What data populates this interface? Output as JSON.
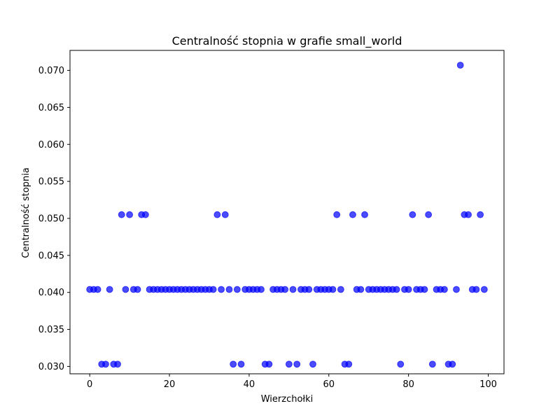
{
  "chart_data": {
    "type": "scatter",
    "title": "Centralność stopnia w grafie small_world",
    "xlabel": "Wierzchołki",
    "ylabel": "Centralność stopnia",
    "xlim": [
      -4.95,
      103.95
    ],
    "ylim": [
      0.029,
      0.0727
    ],
    "xticks": [
      0,
      20,
      40,
      60,
      80,
      100
    ],
    "xtick_labels": [
      "0",
      "20",
      "40",
      "60",
      "80",
      "100"
    ],
    "yticks": [
      0.03,
      0.035,
      0.04,
      0.045,
      0.05,
      0.055,
      0.06,
      0.065,
      0.07
    ],
    "ytick_labels": [
      "0.030",
      "0.035",
      "0.040",
      "0.045",
      "0.050",
      "0.055",
      "0.060",
      "0.065",
      "0.070"
    ],
    "grid": false,
    "marker_color": "#0000ff",
    "x": [
      0,
      1,
      2,
      3,
      4,
      5,
      6,
      7,
      8,
      9,
      10,
      11,
      12,
      13,
      14,
      15,
      16,
      17,
      18,
      19,
      20,
      21,
      22,
      23,
      24,
      25,
      26,
      27,
      28,
      29,
      30,
      31,
      32,
      33,
      34,
      35,
      36,
      37,
      38,
      39,
      40,
      41,
      42,
      43,
      44,
      45,
      46,
      47,
      48,
      49,
      50,
      51,
      52,
      53,
      54,
      55,
      56,
      57,
      58,
      59,
      60,
      61,
      62,
      63,
      64,
      65,
      66,
      67,
      68,
      69,
      70,
      71,
      72,
      73,
      74,
      75,
      76,
      77,
      78,
      79,
      80,
      81,
      82,
      83,
      84,
      85,
      86,
      87,
      88,
      89,
      90,
      91,
      92,
      93,
      94,
      95,
      96,
      97,
      98,
      99
    ],
    "y": [
      0.0404,
      0.0404,
      0.0404,
      0.0303,
      0.0303,
      0.0404,
      0.0303,
      0.0303,
      0.0505,
      0.0404,
      0.0505,
      0.0404,
      0.0404,
      0.0505,
      0.0505,
      0.0404,
      0.0404,
      0.0404,
      0.0404,
      0.0404,
      0.0404,
      0.0404,
      0.0404,
      0.0404,
      0.0404,
      0.0404,
      0.0404,
      0.0404,
      0.0404,
      0.0404,
      0.0404,
      0.0404,
      0.0505,
      0.0404,
      0.0505,
      0.0404,
      0.0303,
      0.0404,
      0.0303,
      0.0404,
      0.0404,
      0.0404,
      0.0404,
      0.0404,
      0.0303,
      0.0303,
      0.0404,
      0.0404,
      0.0404,
      0.0404,
      0.0303,
      0.0404,
      0.0303,
      0.0404,
      0.0404,
      0.0404,
      0.0303,
      0.0404,
      0.0404,
      0.0404,
      0.0404,
      0.0404,
      0.0505,
      0.0404,
      0.0303,
      0.0303,
      0.0505,
      0.0404,
      0.0404,
      0.0505,
      0.0404,
      0.0404,
      0.0404,
      0.0404,
      0.0404,
      0.0404,
      0.0404,
      0.0404,
      0.0303,
      0.0404,
      0.0404,
      0.0505,
      0.0404,
      0.0404,
      0.0404,
      0.0505,
      0.0303,
      0.0404,
      0.0404,
      0.0404,
      0.0303,
      0.0303,
      0.0404,
      0.0707,
      0.0505,
      0.0505,
      0.0404,
      0.0404,
      0.0505,
      0.0404
    ]
  }
}
